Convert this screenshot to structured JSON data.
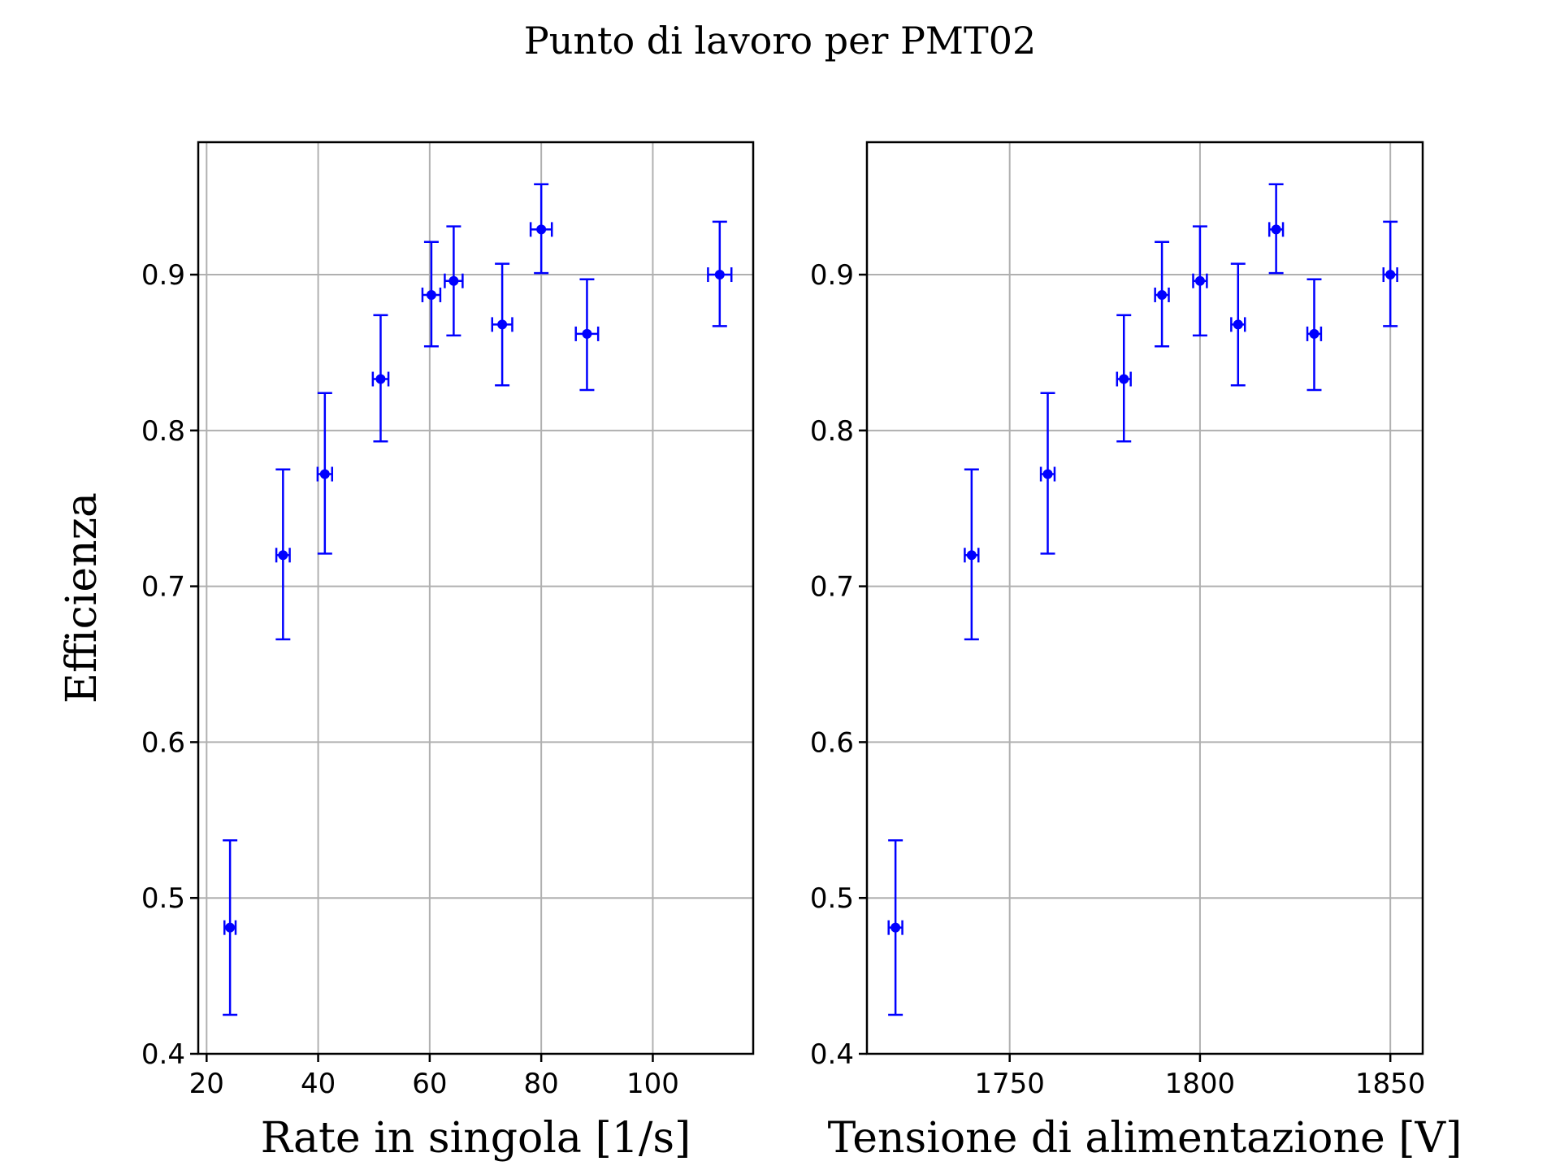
{
  "title": "Punto di lavoro per PMT02",
  "chart_data": [
    {
      "type": "scatter",
      "xlabel": "Rate in singola [1/s]",
      "ylabel": "Efficienza",
      "xlim": [
        18.5,
        118
      ],
      "ylim": [
        0.4,
        0.985
      ],
      "xticks": [
        20,
        40,
        60,
        80,
        100
      ],
      "xtick_labels": [
        "20",
        "40",
        "60",
        "80",
        "100"
      ],
      "yticks": [
        0.4,
        0.5,
        0.6,
        0.7,
        0.8,
        0.9
      ],
      "ytick_labels": [
        "0.4",
        "0.5",
        "0.6",
        "0.7",
        "0.8",
        "0.9"
      ],
      "grid": true,
      "color": "#0000ff",
      "series": [
        {
          "x": [
            24.2,
            33.7,
            41.2,
            51.2,
            60.3,
            64.3,
            73.0,
            80.0,
            88.2,
            112.0
          ],
          "y": [
            0.481,
            0.72,
            0.772,
            0.833,
            0.887,
            0.896,
            0.868,
            0.929,
            0.862,
            0.9
          ],
          "xerr": [
            1.0,
            1.2,
            1.3,
            1.4,
            1.6,
            1.6,
            1.8,
            1.9,
            2.0,
            2.1
          ],
          "yerr_low": [
            0.056,
            0.054,
            0.051,
            0.04,
            0.033,
            0.035,
            0.039,
            0.028,
            0.036,
            0.033
          ],
          "yerr_high": [
            0.056,
            0.055,
            0.052,
            0.041,
            0.034,
            0.035,
            0.039,
            0.029,
            0.035,
            0.034
          ]
        }
      ]
    },
    {
      "type": "scatter",
      "xlabel": "Tensione di alimentazione [V]",
      "ylabel": "",
      "xlim": [
        1712.5,
        1858.5
      ],
      "ylim": [
        0.4,
        0.985
      ],
      "xticks": [
        1750,
        1800,
        1850
      ],
      "xtick_labels": [
        "1750",
        "1800",
        "1850"
      ],
      "yticks": [
        0.4,
        0.5,
        0.6,
        0.7,
        0.8,
        0.9
      ],
      "ytick_labels": [
        "0.4",
        "0.5",
        "0.6",
        "0.7",
        "0.8",
        "0.9"
      ],
      "grid": true,
      "color": "#0000ff",
      "series": [
        {
          "x": [
            1720,
            1740,
            1760,
            1780,
            1790,
            1800,
            1810,
            1820,
            1830,
            1850
          ],
          "y": [
            0.481,
            0.72,
            0.772,
            0.833,
            0.887,
            0.896,
            0.868,
            0.929,
            0.862,
            0.9
          ],
          "xerr": [
            1.8,
            1.8,
            1.8,
            1.8,
            1.8,
            1.8,
            1.8,
            1.8,
            1.8,
            1.8
          ],
          "yerr_low": [
            0.056,
            0.054,
            0.051,
            0.04,
            0.033,
            0.035,
            0.039,
            0.028,
            0.036,
            0.033
          ],
          "yerr_high": [
            0.056,
            0.055,
            0.052,
            0.041,
            0.034,
            0.035,
            0.039,
            0.029,
            0.035,
            0.034
          ]
        }
      ]
    }
  ]
}
